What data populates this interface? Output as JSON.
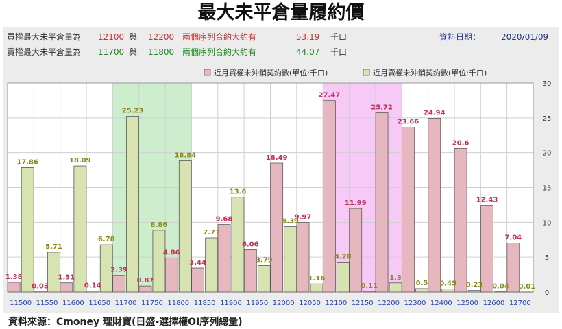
{
  "title": "最大未平倉量履約價",
  "info": {
    "call_row": {
      "label": "買權最大未平倉量為",
      "strike_low": "12100",
      "connector": "與",
      "strike_high": "12200",
      "text": "兩個序列合約大約有",
      "value": "53.19",
      "unit": "千口",
      "color": "#cc3333"
    },
    "put_row": {
      "label": "賣權最大未平倉量為",
      "strike_low": "11700",
      "connector": "與",
      "strike_high": "11800",
      "text": "兩個序列合約大約有",
      "value": "44.07",
      "unit": "千口",
      "color": "#228822"
    },
    "date_label": "資料日期：",
    "date_value": "2020/01/09",
    "date_color": "#223388"
  },
  "footer": "資料來源：Cmoney 理財寶(日盛-選擇權OI序列總量)",
  "chart_data": {
    "type": "bar",
    "categories": [
      "11500",
      "11550",
      "11600",
      "11650",
      "11700",
      "11750",
      "11800",
      "11850",
      "11900",
      "11950",
      "12000",
      "12050",
      "12100",
      "12150",
      "12200",
      "12300",
      "12400",
      "12500",
      "12600",
      "12700"
    ],
    "series": [
      {
        "name": "近月買權未沖銷契約數(單位:千口)",
        "color": "#e7b7bf",
        "label_color": "#c0305a",
        "values": [
          1.38,
          0.03,
          1.31,
          0.14,
          2.39,
          0.87,
          4.86,
          3.44,
          9.68,
          6.06,
          18.49,
          9.97,
          27.47,
          11.99,
          25.72,
          23.66,
          24.94,
          20.6,
          12.43,
          7.04
        ]
      },
      {
        "name": "近月賣權未沖銷契約數(單位:千口)",
        "color": "#d7e3b1",
        "label_color": "#8a8a1a",
        "values": [
          17.86,
          5.71,
          18.09,
          6.78,
          25.23,
          8.86,
          18.84,
          7.77,
          13.6,
          3.79,
          9.39,
          1.16,
          4.28,
          0.11,
          1.3,
          0.5,
          0.45,
          0.23,
          0.04,
          0.01
        ]
      }
    ],
    "value_labels": [
      [
        "1.38",
        "0.03",
        "1.31",
        "0.14",
        "2.39",
        "0.87",
        "4.86",
        "3.44",
        "9.68",
        "6.06",
        "18.49",
        "9.97",
        "27.47",
        "11.99",
        "25.72",
        "23.66",
        "24.94",
        "20.6",
        "12.43",
        "7.04"
      ],
      [
        "17.86",
        "5.71",
        "18.09",
        "6.78",
        "25.23",
        "8.86",
        "18.84",
        "7.77",
        "13.6",
        "3.79",
        "9.39",
        "1.16",
        "4.28",
        "0.11",
        "1.3",
        "0.5",
        "0.45",
        "0.23",
        "0.04",
        "0.01"
      ]
    ],
    "ylim": [
      0,
      30
    ],
    "yticks": [
      "0",
      "5",
      "10",
      "15",
      "20",
      "25",
      "30"
    ],
    "y_axis_side": "right",
    "grid": true,
    "highlights": [
      {
        "from": "11700",
        "to": "11800",
        "color": "#cdeecd"
      },
      {
        "from": "12100",
        "to": "12200",
        "color": "#f7c9f7"
      }
    ],
    "legend_position": "top-right"
  }
}
